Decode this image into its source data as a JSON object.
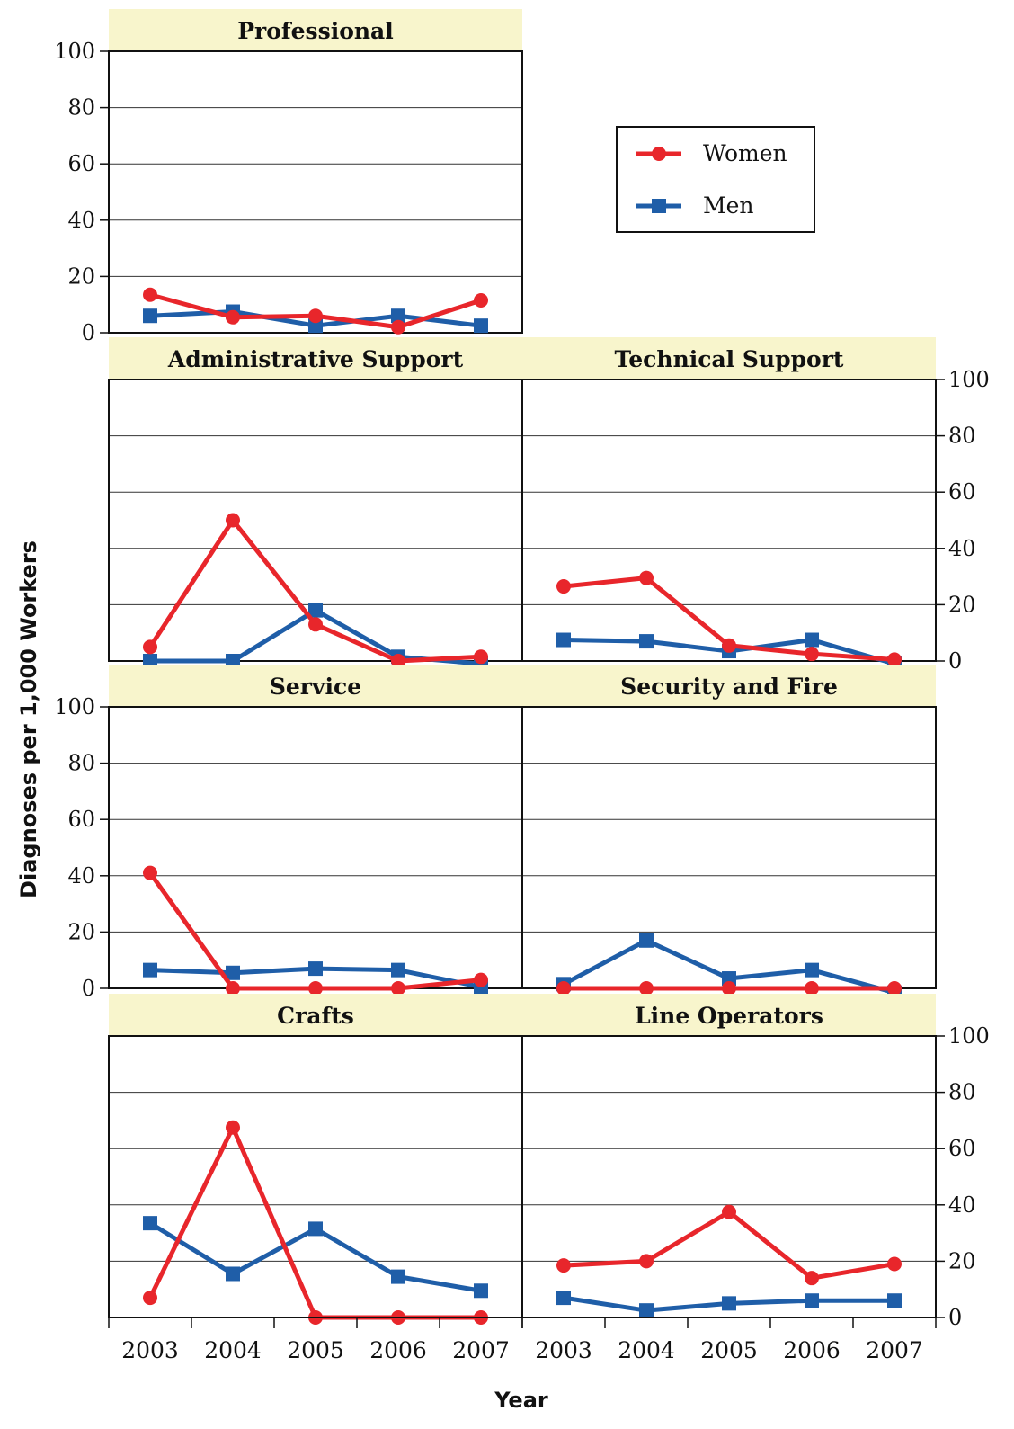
{
  "chart_data": {
    "type": "line",
    "xlabel": "Year",
    "ylabel": "Diagnoses per 1,000 Workers",
    "x": [
      "2003",
      "2004",
      "2005",
      "2006",
      "2007"
    ],
    "ylim": [
      0,
      100
    ],
    "yticks": [
      0,
      20,
      40,
      60,
      80,
      100
    ],
    "grid": true,
    "legend": {
      "placement": "top-right",
      "entries": [
        {
          "name": "Women",
          "color": "#e8262b",
          "marker": "circle"
        },
        {
          "name": "Men",
          "color": "#1f5ea8",
          "marker": "square"
        }
      ]
    },
    "panels": [
      {
        "title": "Professional",
        "series": [
          {
            "name": "Women",
            "values": [
              13.5,
              5.5,
              6,
              2,
              11.5
            ]
          },
          {
            "name": "Men",
            "values": [
              6,
              7.5,
              2.5,
              6,
              2.5
            ]
          }
        ]
      },
      {
        "title": "Administrative Support",
        "series": [
          {
            "name": "Women",
            "values": [
              5,
              50,
              13,
              0,
              1.5
            ]
          },
          {
            "name": "Men",
            "values": [
              0,
              0,
              18,
              1.5,
              -1
            ]
          }
        ]
      },
      {
        "title": "Technical Support",
        "series": [
          {
            "name": "Women",
            "values": [
              26.5,
              29.5,
              5.5,
              2.5,
              0.5
            ]
          },
          {
            "name": "Men",
            "values": [
              7.5,
              7,
              3.5,
              7.5,
              -1
            ]
          }
        ]
      },
      {
        "title": "Service",
        "series": [
          {
            "name": "Women",
            "values": [
              41,
              0,
              0,
              0,
              3
            ]
          },
          {
            "name": "Men",
            "values": [
              6.5,
              5.5,
              7,
              6.5,
              0.5
            ]
          }
        ]
      },
      {
        "title": "Security and Fire",
        "series": [
          {
            "name": "Women",
            "values": [
              0,
              0,
              0,
              0,
              0
            ]
          },
          {
            "name": "Men",
            "values": [
              1.5,
              17,
              3.5,
              6.5,
              -1.5
            ]
          }
        ]
      },
      {
        "title": "Crafts",
        "series": [
          {
            "name": "Women",
            "values": [
              7,
              67.5,
              0,
              0,
              0
            ]
          },
          {
            "name": "Men",
            "values": [
              33.5,
              15.5,
              31.5,
              14.5,
              9.5
            ]
          }
        ]
      },
      {
        "title": "Line Operators",
        "series": [
          {
            "name": "Women",
            "values": [
              18.5,
              20,
              37.5,
              14,
              19
            ]
          },
          {
            "name": "Men",
            "values": [
              7,
              2.5,
              5,
              6,
              6
            ]
          }
        ]
      }
    ]
  }
}
